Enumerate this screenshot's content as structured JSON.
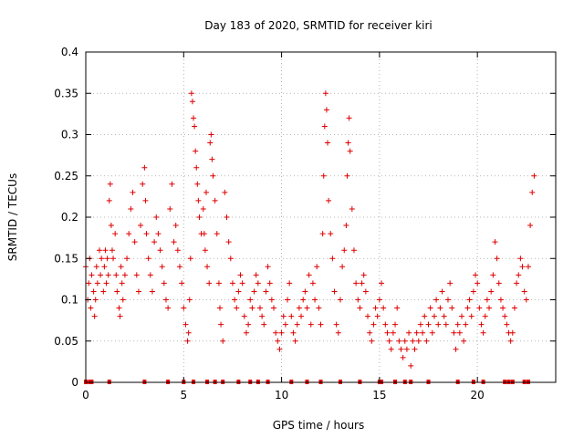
{
  "chart_data": {
    "type": "scatter",
    "title": "Day 183 of 2020, SRMTID for receiver kiri",
    "xlabel": "GPS time / hours",
    "ylabel": "SRMTID / TECUs",
    "xlim": [
      0,
      24
    ],
    "ylim": [
      0,
      0.4
    ],
    "xticks": [
      0,
      5,
      10,
      15,
      20
    ],
    "xtick_labels": [
      "0",
      "5",
      "10",
      "15",
      "20"
    ],
    "yticks": [
      0,
      0.05,
      0.1,
      0.15,
      0.2,
      0.25,
      0.3,
      0.35,
      0.4
    ],
    "ytick_labels": [
      "0",
      "0.05",
      "0.1",
      "0.15",
      "0.2",
      "0.25",
      "0.3",
      "0.35",
      "0.4"
    ],
    "grid": true,
    "marker": "+",
    "color": "#e00000",
    "series": [
      {
        "name": "SRMTID",
        "points": [
          [
            0.0,
            0.14
          ],
          [
            0.1,
            0.1
          ],
          [
            0.15,
            0.12
          ],
          [
            0.2,
            0.15
          ],
          [
            0.25,
            0.09
          ],
          [
            0.3,
            0.13
          ],
          [
            0.4,
            0.11
          ],
          [
            0.45,
            0.08
          ],
          [
            0.5,
            0.1
          ],
          [
            0.55,
            0.14
          ],
          [
            0.6,
            0.12
          ],
          [
            0.7,
            0.16
          ],
          [
            0.75,
            0.13
          ],
          [
            0.8,
            0.15
          ],
          [
            0.9,
            0.11
          ],
          [
            0.95,
            0.14
          ],
          [
            1.0,
            0.16
          ],
          [
            1.05,
            0.12
          ],
          [
            1.1,
            0.15
          ],
          [
            1.15,
            0.13
          ],
          [
            1.2,
            0.22
          ],
          [
            1.25,
            0.24
          ],
          [
            1.3,
            0.19
          ],
          [
            1.35,
            0.16
          ],
          [
            1.4,
            0.15
          ],
          [
            1.5,
            0.18
          ],
          [
            1.55,
            0.13
          ],
          [
            1.6,
            0.11
          ],
          [
            1.7,
            0.09
          ],
          [
            1.75,
            0.08
          ],
          [
            1.8,
            0.14
          ],
          [
            1.85,
            0.12
          ],
          [
            1.9,
            0.1
          ],
          [
            2.0,
            0.13
          ],
          [
            2.1,
            0.15
          ],
          [
            2.2,
            0.18
          ],
          [
            2.3,
            0.21
          ],
          [
            2.4,
            0.23
          ],
          [
            2.5,
            0.17
          ],
          [
            2.6,
            0.13
          ],
          [
            2.7,
            0.11
          ],
          [
            2.8,
            0.19
          ],
          [
            2.9,
            0.24
          ],
          [
            3.0,
            0.26
          ],
          [
            3.05,
            0.22
          ],
          [
            3.1,
            0.18
          ],
          [
            3.2,
            0.15
          ],
          [
            3.3,
            0.13
          ],
          [
            3.4,
            0.11
          ],
          [
            3.5,
            0.17
          ],
          [
            3.6,
            0.2
          ],
          [
            3.7,
            0.18
          ],
          [
            3.8,
            0.16
          ],
          [
            3.9,
            0.14
          ],
          [
            4.0,
            0.12
          ],
          [
            4.1,
            0.1
          ],
          [
            4.2,
            0.09
          ],
          [
            4.3,
            0.21
          ],
          [
            4.4,
            0.24
          ],
          [
            4.5,
            0.17
          ],
          [
            4.6,
            0.19
          ],
          [
            4.7,
            0.16
          ],
          [
            4.8,
            0.14
          ],
          [
            4.9,
            0.12
          ],
          [
            5.0,
            0.09
          ],
          [
            5.1,
            0.07
          ],
          [
            5.2,
            0.05
          ],
          [
            5.25,
            0.06
          ],
          [
            5.3,
            0.1
          ],
          [
            5.35,
            0.15
          ],
          [
            5.4,
            0.35
          ],
          [
            5.45,
            0.34
          ],
          [
            5.5,
            0.32
          ],
          [
            5.55,
            0.31
          ],
          [
            5.6,
            0.28
          ],
          [
            5.65,
            0.26
          ],
          [
            5.7,
            0.24
          ],
          [
            5.75,
            0.22
          ],
          [
            5.8,
            0.2
          ],
          [
            5.9,
            0.18
          ],
          [
            6.0,
            0.21
          ],
          [
            6.05,
            0.18
          ],
          [
            6.1,
            0.16
          ],
          [
            6.15,
            0.23
          ],
          [
            6.2,
            0.14
          ],
          [
            6.3,
            0.12
          ],
          [
            6.35,
            0.29
          ],
          [
            6.4,
            0.3
          ],
          [
            6.45,
            0.27
          ],
          [
            6.5,
            0.25
          ],
          [
            6.6,
            0.22
          ],
          [
            6.7,
            0.18
          ],
          [
            6.8,
            0.12
          ],
          [
            6.85,
            0.09
          ],
          [
            6.9,
            0.07
          ],
          [
            7.0,
            0.05
          ],
          [
            7.1,
            0.23
          ],
          [
            7.2,
            0.2
          ],
          [
            7.3,
            0.17
          ],
          [
            7.4,
            0.15
          ],
          [
            7.5,
            0.12
          ],
          [
            7.6,
            0.1
          ],
          [
            7.7,
            0.09
          ],
          [
            7.8,
            0.11
          ],
          [
            7.9,
            0.13
          ],
          [
            8.0,
            0.12
          ],
          [
            8.1,
            0.08
          ],
          [
            8.2,
            0.06
          ],
          [
            8.3,
            0.07
          ],
          [
            8.4,
            0.1
          ],
          [
            8.5,
            0.09
          ],
          [
            8.6,
            0.11
          ],
          [
            8.7,
            0.13
          ],
          [
            8.8,
            0.12
          ],
          [
            8.9,
            0.09
          ],
          [
            9.0,
            0.08
          ],
          [
            9.1,
            0.07
          ],
          [
            9.2,
            0.11
          ],
          [
            9.3,
            0.14
          ],
          [
            9.4,
            0.12
          ],
          [
            9.5,
            0.1
          ],
          [
            9.6,
            0.09
          ],
          [
            9.7,
            0.06
          ],
          [
            9.8,
            0.05
          ],
          [
            9.9,
            0.04
          ],
          [
            10.0,
            0.06
          ],
          [
            10.1,
            0.08
          ],
          [
            10.2,
            0.07
          ],
          [
            10.3,
            0.1
          ],
          [
            10.4,
            0.12
          ],
          [
            10.5,
            0.08
          ],
          [
            10.6,
            0.06
          ],
          [
            10.7,
            0.05
          ],
          [
            10.8,
            0.07
          ],
          [
            10.9,
            0.09
          ],
          [
            11.0,
            0.08
          ],
          [
            11.1,
            0.1
          ],
          [
            11.2,
            0.11
          ],
          [
            11.3,
            0.09
          ],
          [
            11.4,
            0.13
          ],
          [
            11.5,
            0.07
          ],
          [
            11.6,
            0.12
          ],
          [
            11.7,
            0.1
          ],
          [
            11.8,
            0.14
          ],
          [
            11.9,
            0.09
          ],
          [
            12.0,
            0.07
          ],
          [
            12.1,
            0.18
          ],
          [
            12.15,
            0.25
          ],
          [
            12.2,
            0.31
          ],
          [
            12.25,
            0.35
          ],
          [
            12.3,
            0.33
          ],
          [
            12.35,
            0.29
          ],
          [
            12.4,
            0.22
          ],
          [
            12.5,
            0.18
          ],
          [
            12.6,
            0.15
          ],
          [
            12.7,
            0.11
          ],
          [
            12.8,
            0.07
          ],
          [
            12.9,
            0.06
          ],
          [
            13.0,
            0.1
          ],
          [
            13.1,
            0.14
          ],
          [
            13.2,
            0.16
          ],
          [
            13.3,
            0.19
          ],
          [
            13.35,
            0.25
          ],
          [
            13.4,
            0.29
          ],
          [
            13.45,
            0.32
          ],
          [
            13.5,
            0.28
          ],
          [
            13.6,
            0.21
          ],
          [
            13.7,
            0.16
          ],
          [
            13.8,
            0.12
          ],
          [
            13.9,
            0.1
          ],
          [
            14.0,
            0.09
          ],
          [
            14.1,
            0.12
          ],
          [
            14.2,
            0.13
          ],
          [
            14.3,
            0.11
          ],
          [
            14.4,
            0.08
          ],
          [
            14.5,
            0.06
          ],
          [
            14.6,
            0.05
          ],
          [
            14.7,
            0.07
          ],
          [
            14.8,
            0.09
          ],
          [
            14.9,
            0.08
          ],
          [
            15.0,
            0.1
          ],
          [
            15.1,
            0.12
          ],
          [
            15.2,
            0.09
          ],
          [
            15.3,
            0.07
          ],
          [
            15.4,
            0.06
          ],
          [
            15.5,
            0.05
          ],
          [
            15.6,
            0.04
          ],
          [
            15.7,
            0.06
          ],
          [
            15.8,
            0.07
          ],
          [
            15.9,
            0.09
          ],
          [
            16.0,
            0.05
          ],
          [
            16.1,
            0.04
          ],
          [
            16.2,
            0.03
          ],
          [
            16.3,
            0.05
          ],
          [
            16.4,
            0.04
          ],
          [
            16.5,
            0.06
          ],
          [
            16.6,
            0.02
          ],
          [
            16.7,
            0.05
          ],
          [
            16.8,
            0.04
          ],
          [
            16.9,
            0.06
          ],
          [
            17.0,
            0.05
          ],
          [
            17.1,
            0.07
          ],
          [
            17.2,
            0.06
          ],
          [
            17.3,
            0.08
          ],
          [
            17.4,
            0.05
          ],
          [
            17.5,
            0.07
          ],
          [
            17.6,
            0.09
          ],
          [
            17.7,
            0.06
          ],
          [
            17.8,
            0.08
          ],
          [
            17.9,
            0.1
          ],
          [
            18.0,
            0.07
          ],
          [
            18.1,
            0.09
          ],
          [
            18.2,
            0.11
          ],
          [
            18.3,
            0.08
          ],
          [
            18.4,
            0.07
          ],
          [
            18.5,
            0.1
          ],
          [
            18.6,
            0.12
          ],
          [
            18.7,
            0.09
          ],
          [
            18.8,
            0.06
          ],
          [
            18.9,
            0.04
          ],
          [
            19.0,
            0.07
          ],
          [
            19.1,
            0.06
          ],
          [
            19.2,
            0.08
          ],
          [
            19.3,
            0.05
          ],
          [
            19.4,
            0.07
          ],
          [
            19.5,
            0.09
          ],
          [
            19.6,
            0.1
          ],
          [
            19.7,
            0.08
          ],
          [
            19.8,
            0.11
          ],
          [
            19.9,
            0.13
          ],
          [
            20.0,
            0.12
          ],
          [
            20.1,
            0.09
          ],
          [
            20.2,
            0.07
          ],
          [
            20.3,
            0.06
          ],
          [
            20.4,
            0.08
          ],
          [
            20.5,
            0.1
          ],
          [
            20.6,
            0.09
          ],
          [
            20.7,
            0.11
          ],
          [
            20.8,
            0.13
          ],
          [
            20.9,
            0.17
          ],
          [
            21.0,
            0.15
          ],
          [
            21.1,
            0.12
          ],
          [
            21.2,
            0.1
          ],
          [
            21.3,
            0.09
          ],
          [
            21.4,
            0.08
          ],
          [
            21.5,
            0.07
          ],
          [
            21.6,
            0.06
          ],
          [
            21.7,
            0.05
          ],
          [
            21.8,
            0.06
          ],
          [
            21.9,
            0.09
          ],
          [
            22.0,
            0.12
          ],
          [
            22.1,
            0.13
          ],
          [
            22.2,
            0.15
          ],
          [
            22.3,
            0.14
          ],
          [
            22.4,
            0.11
          ],
          [
            22.5,
            0.1
          ],
          [
            22.6,
            0.14
          ],
          [
            22.7,
            0.19
          ],
          [
            22.8,
            0.23
          ],
          [
            22.9,
            0.25
          ]
        ],
        "gaps": [
          0.0,
          0.2,
          0.3,
          1.2,
          3.0,
          4.2,
          5.0,
          5.5,
          6.2,
          6.6,
          7.0,
          7.8,
          8.4,
          8.8,
          9.3,
          10.5,
          11.3,
          12.0,
          13.0,
          14.0,
          15.0,
          15.1,
          15.8,
          16.3,
          16.6,
          17.5,
          19.0,
          19.8,
          20.3,
          21.4,
          21.6,
          21.8,
          22.4,
          22.6
        ]
      }
    ]
  }
}
